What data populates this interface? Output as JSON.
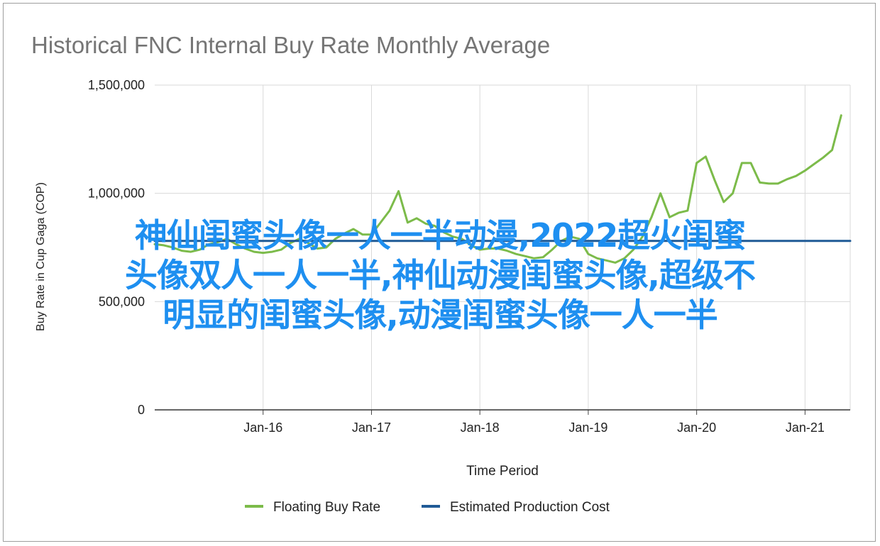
{
  "chart_data": {
    "type": "line",
    "title": "Historical FNC Internal Buy Rate Monthly Average",
    "xlabel": "Time Period",
    "ylabel": "Buy Rate in Cup Gaga (COP)",
    "ylim": [
      0,
      1500000
    ],
    "yticks": [
      {
        "value": 0,
        "label": "0"
      },
      {
        "value": 500000,
        "label": "500,000"
      },
      {
        "value": 1000000,
        "label": "1,000,000"
      },
      {
        "value": 1500000,
        "label": "1,500,000"
      }
    ],
    "xlim": [
      "2015-01",
      "2021-06"
    ],
    "xticks": [
      {
        "date": "2016-01",
        "label": "Jan-16"
      },
      {
        "date": "2017-01",
        "label": "Jan-17"
      },
      {
        "date": "2018-01",
        "label": "Jan-18"
      },
      {
        "date": "2019-01",
        "label": "Jan-19"
      },
      {
        "date": "2020-01",
        "label": "Jan-20"
      },
      {
        "date": "2021-01",
        "label": "Jan-21"
      }
    ],
    "grid": "vertical",
    "legend_position": "bottom",
    "series": [
      {
        "name": "Floating Buy Rate",
        "color": "#7cbb4a",
        "points": [
          [
            "2015-01",
            765000
          ],
          [
            "2015-02",
            760000
          ],
          [
            "2015-03",
            750000
          ],
          [
            "2015-04",
            735000
          ],
          [
            "2015-05",
            730000
          ],
          [
            "2015-06",
            740000
          ],
          [
            "2015-07",
            765000
          ],
          [
            "2015-08",
            775000
          ],
          [
            "2015-09",
            790000
          ],
          [
            "2015-10",
            765000
          ],
          [
            "2015-11",
            745000
          ],
          [
            "2015-12",
            730000
          ],
          [
            "2016-01",
            725000
          ],
          [
            "2016-02",
            730000
          ],
          [
            "2016-03",
            740000
          ],
          [
            "2016-04",
            770000
          ],
          [
            "2016-05",
            790000
          ],
          [
            "2016-06",
            770000
          ],
          [
            "2016-07",
            745000
          ],
          [
            "2016-08",
            750000
          ],
          [
            "2016-09",
            790000
          ],
          [
            "2016-10",
            815000
          ],
          [
            "2016-11",
            835000
          ],
          [
            "2016-12",
            810000
          ],
          [
            "2017-01",
            810000
          ],
          [
            "2017-02",
            865000
          ],
          [
            "2017-03",
            920000
          ],
          [
            "2017-04",
            1010000
          ],
          [
            "2017-05",
            865000
          ],
          [
            "2017-06",
            885000
          ],
          [
            "2017-07",
            860000
          ],
          [
            "2017-08",
            850000
          ],
          [
            "2017-09",
            820000
          ],
          [
            "2017-10",
            800000
          ],
          [
            "2017-11",
            790000
          ],
          [
            "2017-12",
            760000
          ],
          [
            "2018-01",
            740000
          ],
          [
            "2018-02",
            745000
          ],
          [
            "2018-03",
            745000
          ],
          [
            "2018-04",
            735000
          ],
          [
            "2018-05",
            720000
          ],
          [
            "2018-06",
            710000
          ],
          [
            "2018-07",
            700000
          ],
          [
            "2018-08",
            705000
          ],
          [
            "2018-09",
            740000
          ],
          [
            "2018-10",
            780000
          ],
          [
            "2018-11",
            800000
          ],
          [
            "2018-12",
            790000
          ],
          [
            "2019-01",
            720000
          ],
          [
            "2019-02",
            700000
          ],
          [
            "2019-03",
            690000
          ],
          [
            "2019-04",
            680000
          ],
          [
            "2019-05",
            700000
          ],
          [
            "2019-06",
            740000
          ],
          [
            "2019-07",
            800000
          ],
          [
            "2019-08",
            890000
          ],
          [
            "2019-09",
            1000000
          ],
          [
            "2019-10",
            890000
          ],
          [
            "2019-11",
            910000
          ],
          [
            "2019-12",
            920000
          ],
          [
            "2020-01",
            1140000
          ],
          [
            "2020-02",
            1170000
          ],
          [
            "2020-03",
            1060000
          ],
          [
            "2020-04",
            960000
          ],
          [
            "2020-05",
            1000000
          ],
          [
            "2020-06",
            1140000
          ],
          [
            "2020-07",
            1140000
          ],
          [
            "2020-08",
            1050000
          ],
          [
            "2020-09",
            1045000
          ],
          [
            "2020-10",
            1045000
          ],
          [
            "2020-11",
            1065000
          ],
          [
            "2020-12",
            1080000
          ],
          [
            "2021-01",
            1105000
          ],
          [
            "2021-02",
            1135000
          ],
          [
            "2021-03",
            1165000
          ],
          [
            "2021-04",
            1200000
          ],
          [
            "2021-05",
            1360000
          ]
        ]
      },
      {
        "name": "Estimated Production Cost",
        "color": "#1f5a96",
        "points": [
          [
            "2015-01",
            780000
          ],
          [
            "2021-06",
            780000
          ]
        ]
      }
    ]
  },
  "overlay": {
    "lines": [
      "神仙闺蜜头像一人一半动漫,2022超火闺蜜",
      "头像双人一人一半,神仙动漫闺蜜头像,超级不",
      "明显的闺蜜头像,动漫闺蜜头像一人一半"
    ]
  }
}
